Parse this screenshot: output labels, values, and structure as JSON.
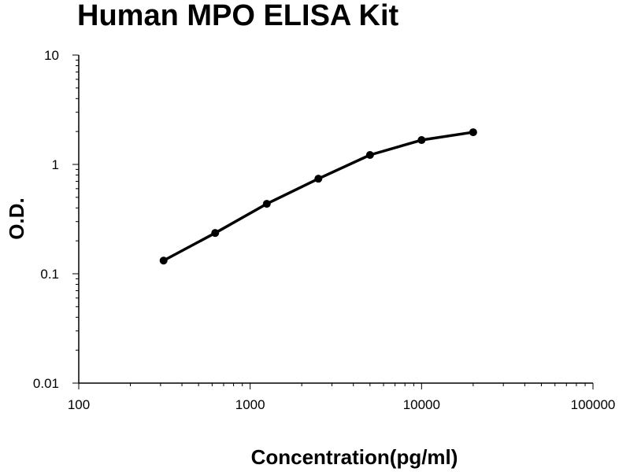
{
  "chart_data": {
    "type": "line",
    "title": "Human MPO ELISA Kit",
    "xlabel": "Concentration(pg/ml)",
    "ylabel": "O.D.",
    "x_scale": "log",
    "y_scale": "log",
    "xlim": [
      100,
      100000
    ],
    "ylim": [
      0.01,
      10
    ],
    "x_ticks": [
      "100",
      "1000",
      "10000",
      "100000"
    ],
    "y_ticks": [
      "0.01",
      "0.1",
      "1",
      "10"
    ],
    "grid": false,
    "series": [
      {
        "x": [
          312.5,
          625,
          1250,
          2500,
          5000,
          10000,
          20000
        ],
        "y": [
          0.132,
          0.236,
          0.436,
          0.74,
          1.22,
          1.67,
          1.97
        ],
        "color": "#000000",
        "marker": "circle"
      }
    ]
  }
}
